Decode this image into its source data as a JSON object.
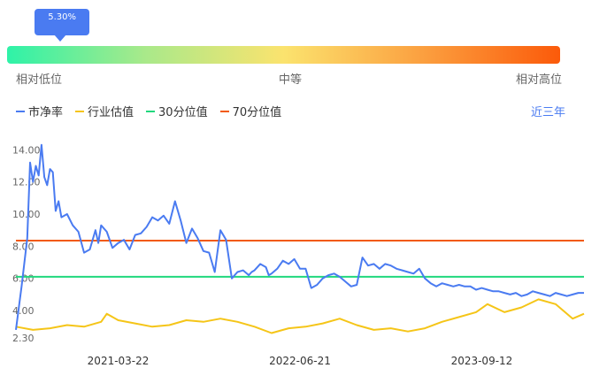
{
  "indicator": {
    "tooltip": "5.30%",
    "percentile": 0.053,
    "labels": {
      "low": "相对低位",
      "mid": "中等",
      "high": "相对高位"
    },
    "gradient_colors": [
      "#2ef2a8",
      "#a9e98a",
      "#fbe36e",
      "#fba040",
      "#fb5a0a"
    ]
  },
  "legend": [
    {
      "label": "市净率",
      "color": "#4a7bf1"
    },
    {
      "label": "行业估值",
      "color": "#f5c518"
    },
    {
      "label": "30分位值",
      "color": "#21d87d"
    },
    {
      "label": "70分位值",
      "color": "#f25a0a"
    }
  ],
  "range_link": "近三年",
  "chart_data": {
    "type": "line",
    "y_ticks": [
      "14.00",
      "12.00",
      "10.00",
      "8.00",
      "6.00",
      "4.00",
      "2.30"
    ],
    "y_tick_values": [
      14.0,
      12.0,
      10.0,
      8.0,
      6.0,
      4.0,
      2.3
    ],
    "ylim": [
      2.3,
      14.4
    ],
    "x_ticks": [
      "2021-03-22",
      "2022-06-21",
      "2023-09-12"
    ],
    "x_tick_positions": [
      0.18,
      0.5,
      0.82
    ],
    "grid": false,
    "reference_lines": [
      {
        "name": "30分位值",
        "value": 6.1,
        "color": "#21d87d"
      },
      {
        "name": "70分位值",
        "value": 8.35,
        "color": "#f25a0a"
      }
    ],
    "series": [
      {
        "name": "市净率",
        "color": "#4a7bf1",
        "x": [
          0,
          0.01,
          0.02,
          0.025,
          0.03,
          0.035,
          0.04,
          0.045,
          0.05,
          0.055,
          0.06,
          0.065,
          0.07,
          0.075,
          0.08,
          0.09,
          0.1,
          0.11,
          0.12,
          0.13,
          0.14,
          0.145,
          0.15,
          0.16,
          0.17,
          0.18,
          0.19,
          0.2,
          0.21,
          0.22,
          0.23,
          0.24,
          0.25,
          0.26,
          0.27,
          0.28,
          0.29,
          0.3,
          0.31,
          0.32,
          0.33,
          0.34,
          0.35,
          0.36,
          0.37,
          0.38,
          0.39,
          0.4,
          0.41,
          0.415,
          0.42,
          0.43,
          0.44,
          0.445,
          0.45,
          0.46,
          0.47,
          0.48,
          0.49,
          0.5,
          0.51,
          0.52,
          0.53,
          0.54,
          0.55,
          0.56,
          0.57,
          0.58,
          0.59,
          0.6,
          0.61,
          0.62,
          0.63,
          0.64,
          0.65,
          0.66,
          0.67,
          0.68,
          0.69,
          0.7,
          0.71,
          0.72,
          0.73,
          0.74,
          0.745,
          0.75,
          0.76,
          0.77,
          0.78,
          0.79,
          0.8,
          0.81,
          0.82,
          0.83,
          0.84,
          0.85,
          0.86,
          0.87,
          0.88,
          0.89,
          0.9,
          0.91,
          0.92,
          0.93,
          0.94,
          0.95,
          0.96,
          0.97,
          0.98,
          0.99,
          1.0
        ],
        "values": [
          2.8,
          5.5,
          8.5,
          13.2,
          12.0,
          13.0,
          12.4,
          14.3,
          12.3,
          11.8,
          12.8,
          12.6,
          10.2,
          10.8,
          9.8,
          10.0,
          9.3,
          8.9,
          7.6,
          7.8,
          9.0,
          8.2,
          9.3,
          8.9,
          7.9,
          8.2,
          8.4,
          7.8,
          8.7,
          8.8,
          9.2,
          9.8,
          9.6,
          9.9,
          9.4,
          10.8,
          9.6,
          8.2,
          9.1,
          8.5,
          7.7,
          7.6,
          6.4,
          9.0,
          8.4,
          6.0,
          6.4,
          6.5,
          6.2,
          6.4,
          6.5,
          6.9,
          6.7,
          6.2,
          6.3,
          6.6,
          7.1,
          6.9,
          7.2,
          6.6,
          6.6,
          5.4,
          5.6,
          6.0,
          6.2,
          6.3,
          6.1,
          5.8,
          5.5,
          5.6,
          7.3,
          6.8,
          6.9,
          6.6,
          6.9,
          6.8,
          6.6,
          6.5,
          6.4,
          6.3,
          6.6,
          6.0,
          5.7,
          5.5,
          5.6,
          5.7,
          5.6,
          5.5,
          5.6,
          5.5,
          5.5,
          5.3,
          5.4,
          5.3,
          5.2,
          5.2,
          5.1,
          5.0,
          5.1,
          4.9,
          5.0,
          5.2,
          5.1,
          5.0,
          4.9,
          5.1,
          5.0,
          4.9,
          5.0,
          5.1,
          5.1
        ]
      },
      {
        "name": "行业估值",
        "color": "#f5c518",
        "x": [
          0,
          0.03,
          0.06,
          0.09,
          0.12,
          0.15,
          0.16,
          0.18,
          0.21,
          0.24,
          0.27,
          0.3,
          0.33,
          0.36,
          0.39,
          0.42,
          0.45,
          0.48,
          0.51,
          0.54,
          0.57,
          0.6,
          0.63,
          0.66,
          0.69,
          0.72,
          0.75,
          0.78,
          0.81,
          0.83,
          0.86,
          0.89,
          0.92,
          0.95,
          0.98,
          1.0
        ],
        "values": [
          3.0,
          2.8,
          2.9,
          3.1,
          3.0,
          3.3,
          3.8,
          3.4,
          3.2,
          3.0,
          3.1,
          3.4,
          3.3,
          3.5,
          3.3,
          3.0,
          2.6,
          2.9,
          3.0,
          3.2,
          3.5,
          3.1,
          2.8,
          2.9,
          2.7,
          2.9,
          3.3,
          3.6,
          3.9,
          4.4,
          3.9,
          4.2,
          4.7,
          4.4,
          3.5,
          3.8
        ]
      }
    ]
  }
}
